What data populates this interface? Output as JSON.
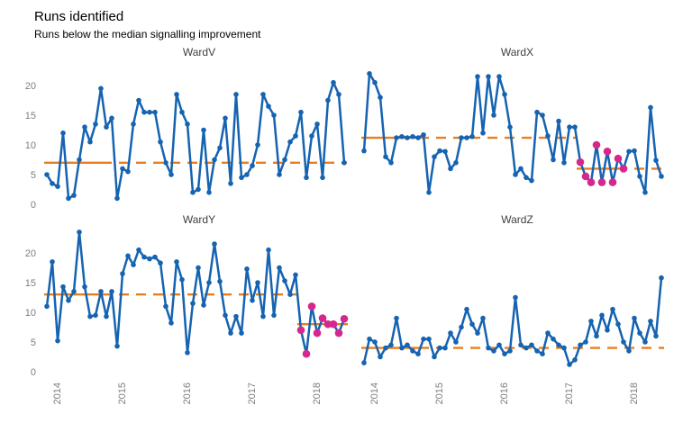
{
  "title": "Runs identified",
  "subtitle": "Runs below the median signalling improvement",
  "colors": {
    "line": "#1563b1",
    "point": "#1563b1",
    "median_line": "#e87e1e",
    "sustained_point": "#d6288c",
    "axis_text": "#7d7d7d",
    "panel_title_text": "#404040",
    "title_text": "#000000",
    "background": "#ffffff"
  },
  "chart_data": {
    "type": "line",
    "facets": [
      "WardV",
      "WardX",
      "WardY",
      "WardZ"
    ],
    "frequency": "monthly",
    "x_ticks": {
      "labels": [
        "2014",
        "2015",
        "2016",
        "2017",
        "2018"
      ],
      "indices": [
        2.5,
        14.5,
        26.5,
        38.5,
        50.5
      ]
    },
    "y_ticks": [
      0,
      5,
      10,
      15,
      20
    ],
    "ylim": [
      0,
      24
    ],
    "grid": "off",
    "legend": "none",
    "panels": [
      {
        "name": "WardV",
        "median": 7,
        "baseline_points": 13,
        "sustained": null,
        "values": [
          5,
          3.5,
          3,
          12,
          1,
          1.5,
          7.5,
          13,
          10.5,
          13.5,
          19.5,
          13,
          14.5,
          1,
          6,
          5.5,
          13.5,
          17.5,
          15.5,
          15.5,
          15.5,
          10.5,
          7,
          5,
          18.5,
          15.5,
          13.5,
          2,
          2.5,
          12.5,
          2,
          7.5,
          9.5,
          14.5,
          3.5,
          18.5,
          4.5,
          5,
          6.5,
          10,
          18.5,
          16.5,
          15,
          5,
          7.5,
          10.5,
          11.5,
          15.5,
          4.5,
          11.5,
          13.5,
          4.5,
          17.5,
          20.5,
          18.5,
          7
        ]
      },
      {
        "name": "WardX",
        "median": 11.2,
        "baseline_points": 13,
        "sustained": {
          "start_index": 40,
          "end_index": 48,
          "median": 6
        },
        "values": [
          9,
          22,
          20.5,
          18,
          8,
          7,
          11.2,
          11.4,
          11.2,
          11.4,
          11.2,
          11.7,
          2,
          8,
          9,
          8.9,
          6,
          7,
          11.2,
          11.2,
          11.4,
          21.5,
          12,
          21.5,
          15,
          21.5,
          18.5,
          13,
          5,
          6,
          4.5,
          4,
          15.5,
          15,
          11.5,
          7.5,
          14,
          7,
          13,
          13,
          7.1,
          4.7,
          3.7,
          10,
          3.7,
          8.9,
          3.7,
          7.7,
          6,
          8.9,
          9,
          4.7,
          2,
          16.3,
          7.4,
          4.7
        ]
      },
      {
        "name": "WardY",
        "median": 13,
        "baseline_points": 13,
        "sustained": {
          "start_index": 47,
          "end_index": 55,
          "median": 8
        },
        "values": [
          11,
          18.5,
          5.2,
          14.3,
          12,
          13.5,
          23.5,
          14.3,
          9.3,
          9.5,
          13.5,
          9.3,
          13.5,
          4.3,
          16.5,
          19.5,
          18,
          20.5,
          19.3,
          19,
          19.3,
          18.3,
          11,
          8.2,
          18.5,
          15.5,
          3.2,
          11.5,
          17.5,
          11.2,
          15,
          21.5,
          15.2,
          9.5,
          6.5,
          9.3,
          6.5,
          17.3,
          12,
          15,
          9.3,
          20.5,
          9.5,
          17.5,
          15.3,
          13,
          16.3,
          7,
          3,
          11,
          6.5,
          9,
          8,
          8,
          6.5,
          8.9
        ]
      },
      {
        "name": "WardZ",
        "median": 4,
        "baseline_points": 13,
        "sustained": null,
        "values": [
          1.5,
          5.5,
          5,
          2.5,
          4,
          4.5,
          9,
          4,
          4.5,
          3.5,
          3,
          5.5,
          5.5,
          2.5,
          4,
          4,
          6.5,
          5,
          7.5,
          10.5,
          8,
          6.5,
          9,
          4,
          3.5,
          4.5,
          3,
          3.5,
          12.5,
          4.5,
          4,
          4.5,
          3.5,
          3,
          6.5,
          5.5,
          4.5,
          4,
          1.2,
          2,
          4.5,
          5,
          8.5,
          6,
          9.5,
          7,
          10.5,
          8,
          5,
          3.5,
          9,
          6.5,
          5,
          8.5,
          6,
          15.8
        ]
      }
    ]
  }
}
